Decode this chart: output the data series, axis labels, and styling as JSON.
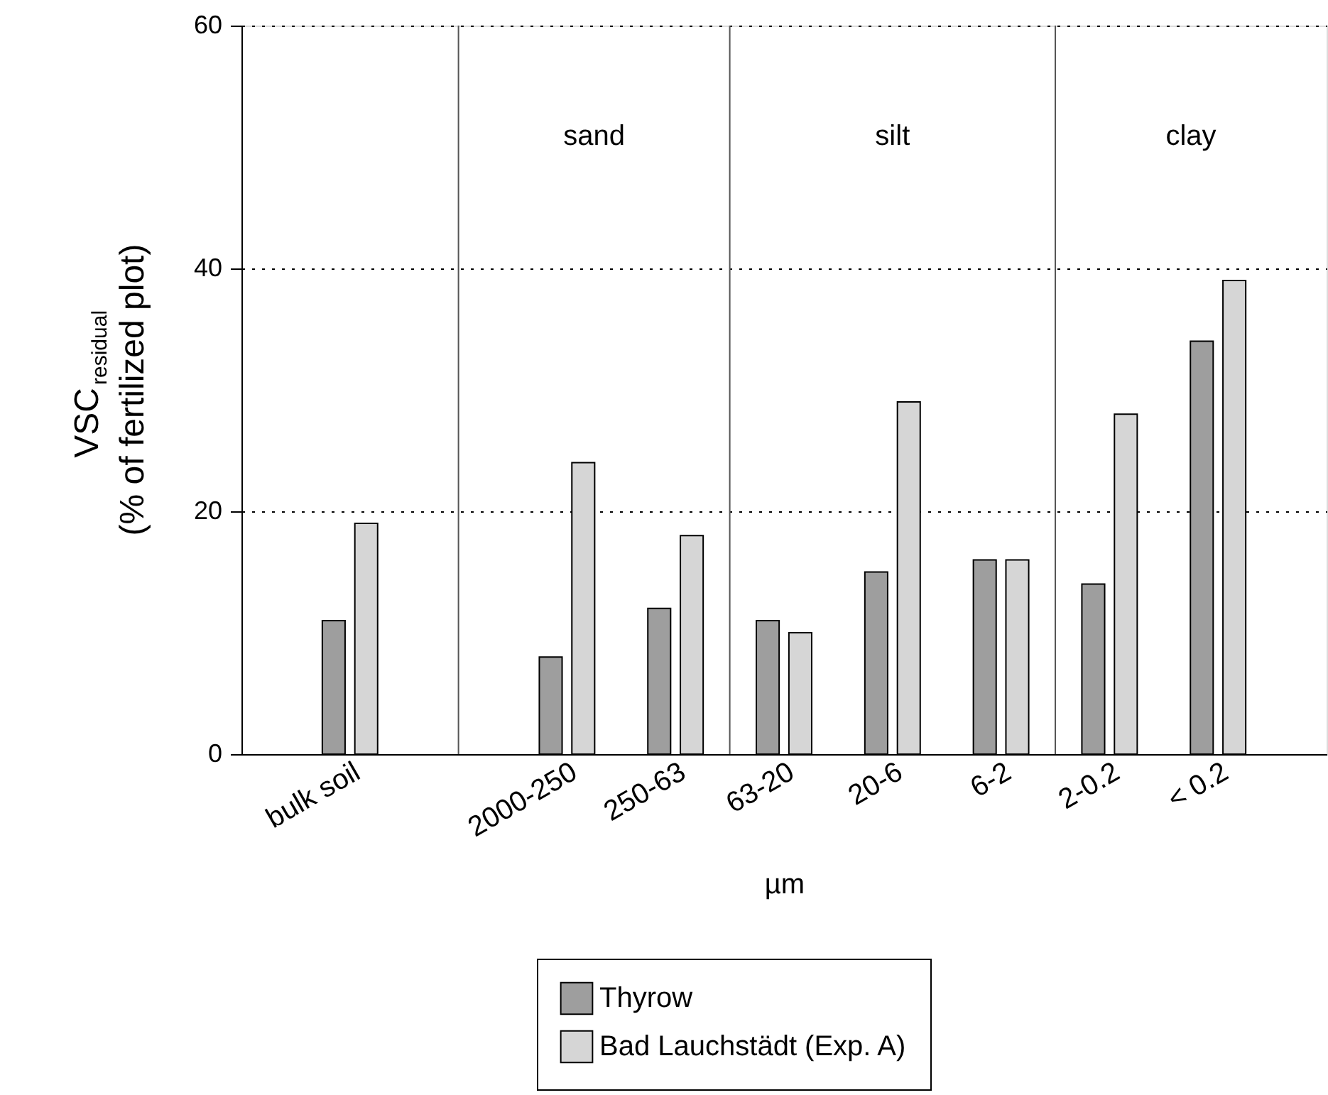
{
  "chart_data": {
    "type": "bar",
    "xlabel": "µm",
    "ylabel": "VSC$_{residual}$\n(% of fertilized plot)",
    "categories": [
      "bulk soil",
      null,
      "2000-250",
      "250-63",
      "63-20",
      "20-6",
      "6-2",
      "2-0.2",
      "< 0.2"
    ],
    "series": [
      {
        "name": "Thyrow",
        "color": "#9e9e9e",
        "values": [
          11,
          null,
          8,
          12,
          11,
          15,
          16,
          14,
          34
        ]
      },
      {
        "name": "Bad Lauchstädt (Exp. A)",
        "color": "#d6d6d6",
        "values": [
          19,
          null,
          24,
          18,
          10,
          29,
          16,
          28,
          39
        ]
      }
    ],
    "ylim": [
      0,
      60
    ],
    "yticks": [
      0,
      20,
      40,
      60
    ],
    "grid": "y",
    "legend": "bottom",
    "annotations": [
      "sand",
      "silt",
      "clay"
    ]
  }
}
